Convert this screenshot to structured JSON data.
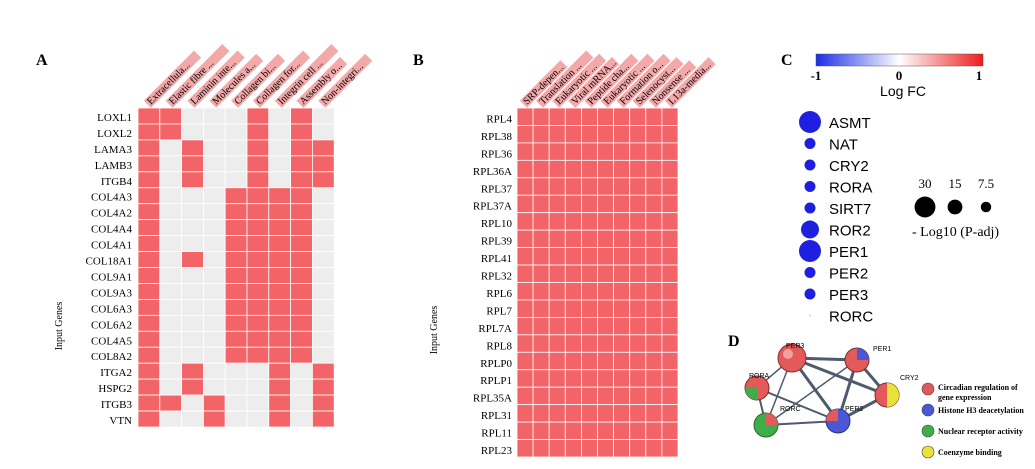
{
  "panel_letters": {
    "a": "A",
    "b": "B",
    "c": "C",
    "d": "D"
  },
  "panelA": {
    "y_axis_label": "Input Genes",
    "columns": [
      "Extracellula...",
      "Elastic fibre ...",
      "Laminin inte...",
      "Molecules a...",
      "Collagen bi...",
      "Collagen for...",
      "Integrin cell ...",
      "Assembly o...",
      "Non-integri..."
    ],
    "rows": [
      "LOXL1",
      "LOXL2",
      "LAMA3",
      "LAMB3",
      "ITGB4",
      "COL4A3",
      "COL4A2",
      "COL4A4",
      "COL4A1",
      "COL18A1",
      "COL9A1",
      "COL9A3",
      "COL6A3",
      "COL6A2",
      "COL4A5",
      "COL8A2",
      "ITGA2",
      "HSPG2",
      "ITGB3",
      "VTN"
    ],
    "matrix": [
      [
        1,
        1,
        0,
        0,
        0,
        1,
        0,
        1,
        0
      ],
      [
        1,
        1,
        0,
        0,
        0,
        1,
        0,
        1,
        0
      ],
      [
        1,
        0,
        1,
        0,
        0,
        1,
        0,
        1,
        1
      ],
      [
        1,
        0,
        1,
        0,
        0,
        1,
        0,
        1,
        1
      ],
      [
        1,
        0,
        1,
        0,
        0,
        1,
        0,
        1,
        1
      ],
      [
        1,
        0,
        0,
        0,
        1,
        1,
        1,
        1,
        0
      ],
      [
        1,
        0,
        0,
        0,
        1,
        1,
        1,
        1,
        0
      ],
      [
        1,
        0,
        0,
        0,
        1,
        1,
        1,
        1,
        0
      ],
      [
        1,
        0,
        0,
        0,
        1,
        1,
        1,
        1,
        0
      ],
      [
        1,
        0,
        1,
        0,
        1,
        1,
        1,
        1,
        0
      ],
      [
        1,
        0,
        0,
        0,
        1,
        1,
        1,
        1,
        0
      ],
      [
        1,
        0,
        0,
        0,
        1,
        1,
        1,
        1,
        0
      ],
      [
        1,
        0,
        0,
        0,
        1,
        1,
        1,
        1,
        0
      ],
      [
        1,
        0,
        0,
        0,
        1,
        1,
        1,
        1,
        0
      ],
      [
        1,
        0,
        0,
        0,
        1,
        1,
        1,
        1,
        0
      ],
      [
        1,
        0,
        0,
        0,
        1,
        1,
        1,
        1,
        0
      ],
      [
        1,
        0,
        1,
        0,
        0,
        0,
        1,
        0,
        1
      ],
      [
        1,
        0,
        1,
        0,
        0,
        0,
        1,
        0,
        1
      ],
      [
        1,
        1,
        0,
        1,
        0,
        0,
        1,
        0,
        1
      ],
      [
        1,
        0,
        0,
        1,
        0,
        0,
        1,
        0,
        1
      ]
    ]
  },
  "panelB": {
    "y_axis_label": "Input Genes",
    "columns": [
      "SRP-depen...",
      "Translation ...",
      "Eukaryotic ...",
      "Viral mRNA...",
      "Peptide cha...",
      "Eukaryotic ...",
      "Formation o...",
      "Selenocyst...",
      "Nonsense ...",
      "L13a-media..."
    ],
    "rows": [
      "RPL4",
      "RPL38",
      "RPL36",
      "RPL36A",
      "RPL37",
      "RPL37A",
      "RPL10",
      "RPL39",
      "RPL41",
      "RPL32",
      "RPL6",
      "RPL7",
      "RPL7A",
      "RPL8",
      "RPLP0",
      "RPLP1",
      "RPL35A",
      "RPL31",
      "RPL11",
      "RPL23"
    ]
  },
  "panelC": {
    "colorbar_min": "-1",
    "colorbar_mid": "0",
    "colorbar_max": "1",
    "colorbar_label": "Log FC",
    "genes": [
      {
        "name": "ASMT",
        "neglog10_padj": 30
      },
      {
        "name": "NAT",
        "neglog10_padj": 7.5
      },
      {
        "name": "CRY2",
        "neglog10_padj": 7.5
      },
      {
        "name": "RORA",
        "neglog10_padj": 7.5
      },
      {
        "name": "SIRT7",
        "neglog10_padj": 7.5
      },
      {
        "name": "ROR2",
        "neglog10_padj": 20
      },
      {
        "name": "PER1",
        "neglog10_padj": 30
      },
      {
        "name": "PER2",
        "neglog10_padj": 7.5
      },
      {
        "name": "PER3",
        "neglog10_padj": 7.5
      },
      {
        "name": "RORC",
        "neglog10_padj": 0.5
      }
    ],
    "size_legend_values": [
      "30",
      "15",
      "7.5"
    ],
    "size_legend_label": "- Log10 (P-adj)"
  },
  "panelD": {
    "nodes": [
      "PER3",
      "PER1",
      "RORA",
      "CRY2",
      "RORC",
      "PER2"
    ],
    "legend": [
      {
        "label": "Circadian regulation of gene expression",
        "color": "#e05a5a"
      },
      {
        "label": "Histone H3 deacetylation",
        "color": "#4a58d8"
      },
      {
        "label": "Nuclear receptor activity",
        "color": "#3fae4a"
      },
      {
        "label": "Coenzyme binding",
        "color": "#e8e23a"
      }
    ]
  },
  "colors": {
    "filled": "#f26468",
    "empty": "#ededed",
    "header_highlight": "#f3a9a9",
    "dot": "#1f1fe0"
  }
}
